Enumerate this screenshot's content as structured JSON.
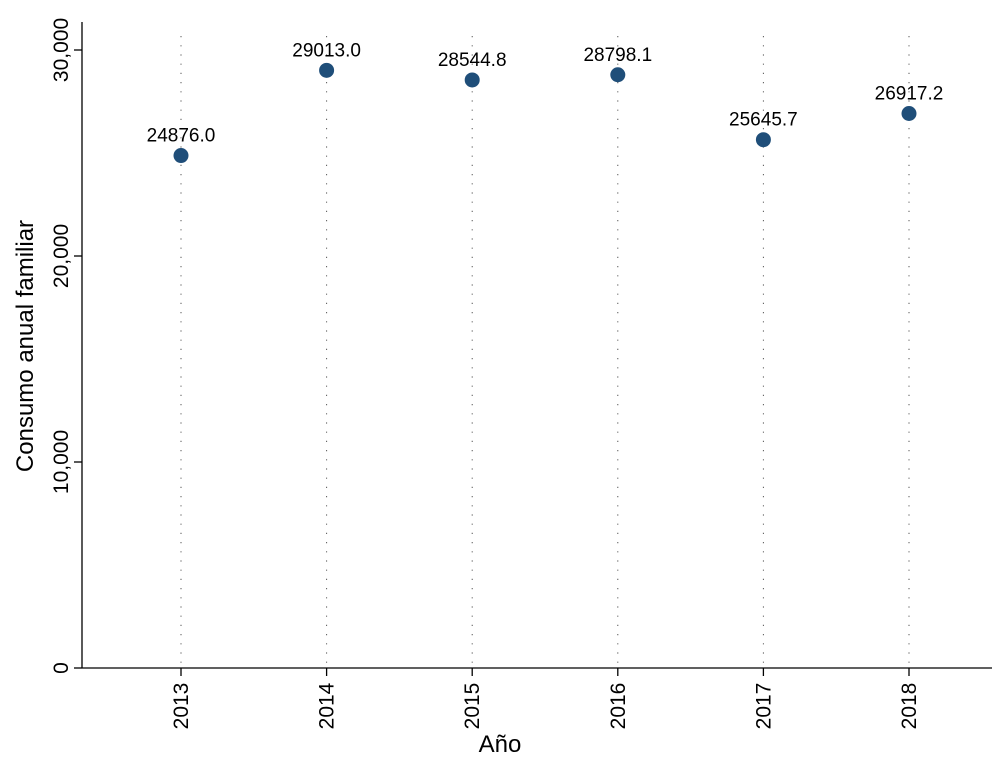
{
  "chart_data": {
    "type": "scatter",
    "title": "",
    "xlabel": "Año",
    "ylabel": "Consumo anual familiar",
    "categories": [
      "2013",
      "2014",
      "2015",
      "2016",
      "2017",
      "2018"
    ],
    "values": [
      24876.0,
      29013.0,
      28544.8,
      28798.1,
      25645.7,
      26917.2
    ],
    "data_labels": [
      "24876.0",
      "29013.0",
      "28544.8",
      "28798.1",
      "25645.7",
      "26917.2"
    ],
    "y_ticks": [
      0,
      10000,
      20000,
      30000
    ],
    "y_tick_labels": [
      "0",
      "10,000",
      "20,000",
      "30,000"
    ],
    "ylim": [
      0,
      31000
    ],
    "vertical_dotted_gridlines": true,
    "legend": "none",
    "marker_color": "#1f4e79"
  }
}
